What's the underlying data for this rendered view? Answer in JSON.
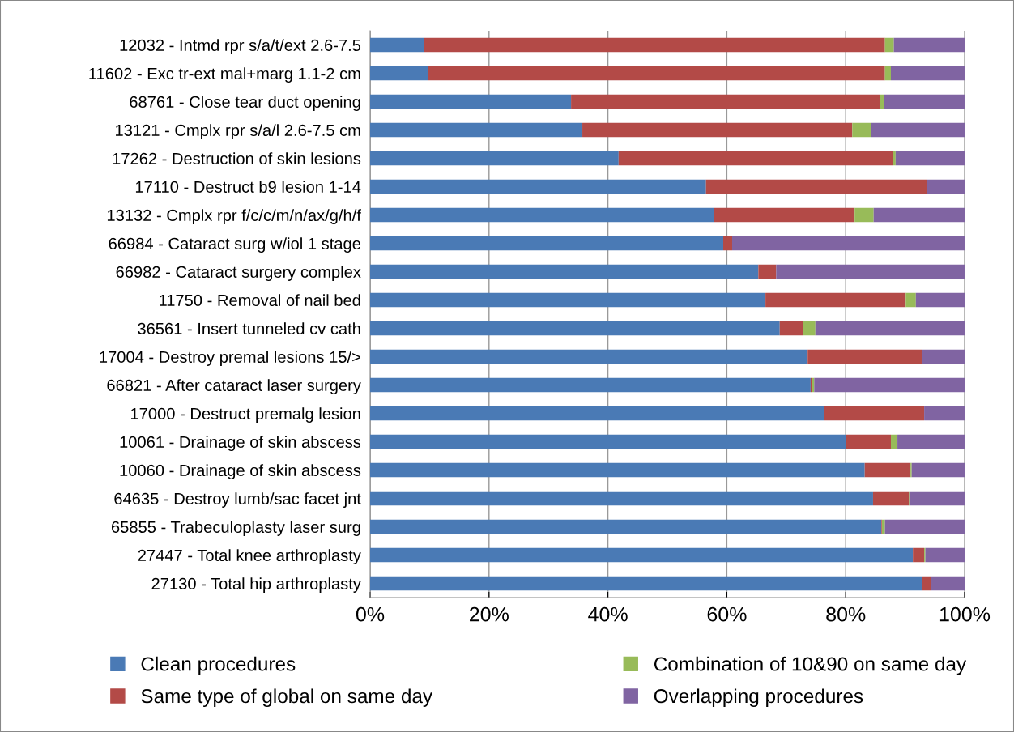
{
  "chart_data": {
    "type": "bar",
    "orientation": "horizontal",
    "stacked": true,
    "categories": [
      "12032 - Intmd rpr s/a/t/ext 2.6-7.5",
      "11602 - Exc tr-ext mal+marg 1.1-2 cm",
      "68761 - Close tear duct opening",
      "13121 - Cmplx rpr s/a/l 2.6-7.5 cm",
      "17262 - Destruction of skin lesions",
      "17110 - Destruct b9 lesion 1-14",
      "13132 - Cmplx rpr f/c/c/m/n/ax/g/h/f",
      "66984 - Cataract surg w/iol 1 stage",
      "66982 - Cataract surgery complex",
      "11750 - Removal of nail bed",
      "36561 - Insert tunneled cv cath",
      "17004 - Destroy premal lesions 15/>",
      "66821 - After cataract laser surgery",
      "17000 - Destruct premalg lesion",
      "10061 - Drainage of skin abscess",
      "10060 - Drainage of skin abscess",
      "64635 - Destroy lumb/sac facet jnt",
      "65855 - Trabeculoplasty laser surg",
      "27447 - Total knee arthroplasty",
      "27130 - Total hip arthroplasty"
    ],
    "series": [
      {
        "name": "Clean procedures",
        "color": "#4a7ab5",
        "values": [
          9.1,
          9.7,
          33.8,
          35.7,
          41.8,
          56.5,
          57.8,
          59.4,
          65.3,
          66.5,
          68.9,
          73.6,
          74.1,
          76.4,
          80.0,
          83.2,
          84.6,
          86.0,
          91.3,
          92.8
        ]
      },
      {
        "name": "Same type of global on same day",
        "color": "#b34a47",
        "values": [
          77.5,
          76.9,
          52.0,
          45.4,
          46.2,
          37.1,
          23.7,
          1.5,
          3.0,
          23.6,
          3.9,
          19.2,
          0.2,
          16.8,
          7.6,
          7.7,
          6.0,
          0.1,
          1.9,
          1.6
        ]
      },
      {
        "name": "Combination of 10&90 on same day",
        "color": "#98bb59",
        "values": [
          1.5,
          1.0,
          0.7,
          3.2,
          0.4,
          0.1,
          3.2,
          0,
          0,
          1.7,
          2.1,
          0,
          0.4,
          0,
          1.1,
          0.2,
          0.1,
          0.5,
          0.2,
          0
        ]
      },
      {
        "name": "Overlapping procedures",
        "color": "#8064a2",
        "values": [
          11.9,
          12.4,
          13.5,
          15.7,
          11.6,
          6.3,
          15.3,
          39.1,
          31.7,
          8.2,
          25.1,
          7.2,
          25.3,
          6.8,
          11.3,
          8.9,
          9.3,
          13.4,
          6.6,
          5.6
        ]
      }
    ],
    "xlim": [
      0,
      100
    ],
    "xticks": [
      {
        "value": 0,
        "label": "0%"
      },
      {
        "value": 20,
        "label": "20%"
      },
      {
        "value": 40,
        "label": "40%"
      },
      {
        "value": 60,
        "label": "60%"
      },
      {
        "value": 80,
        "label": "80%"
      },
      {
        "value": 100,
        "label": "100%"
      }
    ],
    "grid": "x",
    "legend": "bottom"
  }
}
